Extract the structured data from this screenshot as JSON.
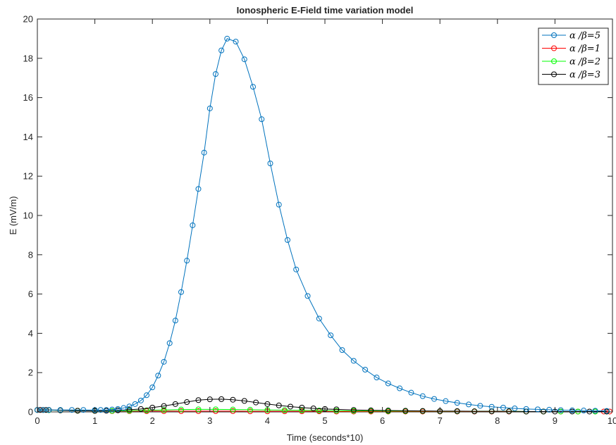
{
  "chart_data": {
    "type": "line",
    "title": "Ionospheric E-Field time variation model",
    "xlabel": "Time (seconds*10)",
    "ylabel": "E (mV/m)",
    "xlim": [
      0,
      10
    ],
    "ylim": [
      0,
      20
    ],
    "xticks": [
      "0",
      "1",
      "2",
      "3",
      "4",
      "5",
      "6",
      "7",
      "8",
      "9",
      "10"
    ],
    "yticks": [
      "0",
      "2",
      "4",
      "6",
      "8",
      "10",
      "12",
      "14",
      "16",
      "18",
      "20"
    ],
    "grid": false,
    "legend_position": "top-right",
    "series": [
      {
        "name": "α /β=5",
        "color": "#0072BD",
        "marker": "circle-open",
        "x": [
          0.0,
          0.1,
          0.2,
          0.4,
          0.6,
          0.8,
          1.0,
          1.1,
          1.2,
          1.3,
          1.4,
          1.5,
          1.6,
          1.7,
          1.8,
          1.9,
          2.0,
          2.1,
          2.2,
          2.3,
          2.4,
          2.5,
          2.6,
          2.7,
          2.8,
          2.9,
          3.0,
          3.1,
          3.2,
          3.3,
          3.45,
          3.6,
          3.75,
          3.9,
          4.05,
          4.2,
          4.35,
          4.5,
          4.7,
          4.9,
          5.1,
          5.3,
          5.5,
          5.7,
          5.9,
          6.1,
          6.3,
          6.5,
          6.7,
          6.9,
          7.1,
          7.3,
          7.5,
          7.7,
          7.9,
          8.1,
          8.3,
          8.5,
          8.7,
          8.9,
          9.1,
          9.3,
          9.5,
          9.7,
          9.9
        ],
        "y": [
          0.1,
          0.1,
          0.1,
          0.1,
          0.1,
          0.1,
          0.1,
          0.1,
          0.1,
          0.12,
          0.15,
          0.2,
          0.28,
          0.4,
          0.58,
          0.85,
          1.25,
          1.85,
          2.55,
          3.5,
          4.65,
          6.1,
          7.7,
          9.5,
          11.35,
          13.2,
          15.45,
          17.2,
          18.4,
          19.0,
          18.85,
          17.95,
          16.55,
          14.9,
          12.65,
          10.55,
          8.75,
          7.25,
          5.9,
          4.75,
          3.9,
          3.15,
          2.6,
          2.15,
          1.75,
          1.45,
          1.2,
          0.98,
          0.8,
          0.66,
          0.55,
          0.46,
          0.38,
          0.31,
          0.26,
          0.22,
          0.18,
          0.15,
          0.13,
          0.11,
          0.09,
          0.08,
          0.07,
          0.06,
          0.05
        ]
      },
      {
        "name": "α /β=1",
        "color": "#FF0000",
        "marker": "circle-open",
        "x": [
          0.0,
          0.05,
          0.1,
          0.2,
          0.4,
          0.7,
          1.0,
          1.3,
          1.6,
          1.9,
          2.2,
          2.5,
          2.8,
          3.1,
          3.4,
          3.7,
          4.0,
          4.3,
          4.6,
          4.9,
          5.2,
          5.5,
          5.8,
          6.1,
          6.4,
          6.7,
          7.0,
          7.3,
          7.6,
          7.9,
          8.2,
          8.5,
          8.8,
          9.1,
          9.4,
          9.7,
          9.85,
          9.95
        ],
        "y": [
          0.1,
          0.1,
          0.1,
          0.1,
          0.08,
          0.06,
          0.05,
          0.04,
          0.04,
          0.04,
          0.04,
          0.04,
          0.04,
          0.04,
          0.04,
          0.03,
          0.03,
          0.03,
          0.03,
          0.03,
          0.02,
          0.02,
          0.02,
          0.02,
          0.02,
          0.02,
          0.02,
          0.02,
          0.02,
          0.02,
          0.02,
          0.02,
          0.02,
          0.02,
          0.02,
          0.02,
          0.02,
          0.02
        ]
      },
      {
        "name": "α /β=2",
        "color": "#00FF00",
        "marker": "circle-open",
        "x": [
          0.0,
          0.1,
          0.2,
          0.4,
          0.7,
          1.0,
          1.3,
          1.6,
          1.9,
          2.2,
          2.5,
          2.8,
          3.1,
          3.4,
          3.7,
          4.0,
          4.3,
          4.6,
          4.9,
          5.2,
          5.5,
          5.8,
          6.1,
          6.4,
          6.7,
          7.0,
          7.3,
          7.6,
          7.9,
          8.2,
          8.5,
          8.8,
          9.1,
          9.4,
          9.7,
          9.9
        ],
        "y": [
          0.1,
          0.1,
          0.09,
          0.08,
          0.06,
          0.05,
          0.05,
          0.06,
          0.08,
          0.1,
          0.12,
          0.13,
          0.13,
          0.12,
          0.11,
          0.1,
          0.09,
          0.08,
          0.07,
          0.06,
          0.05,
          0.05,
          0.04,
          0.04,
          0.04,
          0.03,
          0.03,
          0.03,
          0.03,
          0.03,
          0.02,
          0.02,
          0.02,
          0.02,
          0.02,
          0.02
        ]
      },
      {
        "name": "α /β=3",
        "color": "#000000",
        "marker": "circle-open",
        "x": [
          0.0,
          0.05,
          0.1,
          0.15,
          0.2,
          0.4,
          0.7,
          1.0,
          1.2,
          1.4,
          1.6,
          1.8,
          2.0,
          2.2,
          2.4,
          2.6,
          2.8,
          3.0,
          3.2,
          3.4,
          3.6,
          3.8,
          4.0,
          4.2,
          4.4,
          4.6,
          4.8,
          5.0,
          5.2,
          5.5,
          5.8,
          6.1,
          6.4,
          6.7,
          7.0,
          7.3,
          7.6,
          7.9,
          8.2,
          8.5,
          8.8,
          9.0,
          9.3,
          9.6,
          9.9
        ],
        "y": [
          0.1,
          0.1,
          0.1,
          0.1,
          0.1,
          0.08,
          0.06,
          0.05,
          0.06,
          0.08,
          0.11,
          0.15,
          0.22,
          0.3,
          0.4,
          0.5,
          0.6,
          0.64,
          0.65,
          0.62,
          0.56,
          0.48,
          0.4,
          0.33,
          0.27,
          0.22,
          0.18,
          0.15,
          0.13,
          0.1,
          0.08,
          0.07,
          0.06,
          0.05,
          0.04,
          0.04,
          0.03,
          0.03,
          0.03,
          0.02,
          0.02,
          0.02,
          0.02,
          0.02,
          0.02
        ]
      }
    ]
  }
}
